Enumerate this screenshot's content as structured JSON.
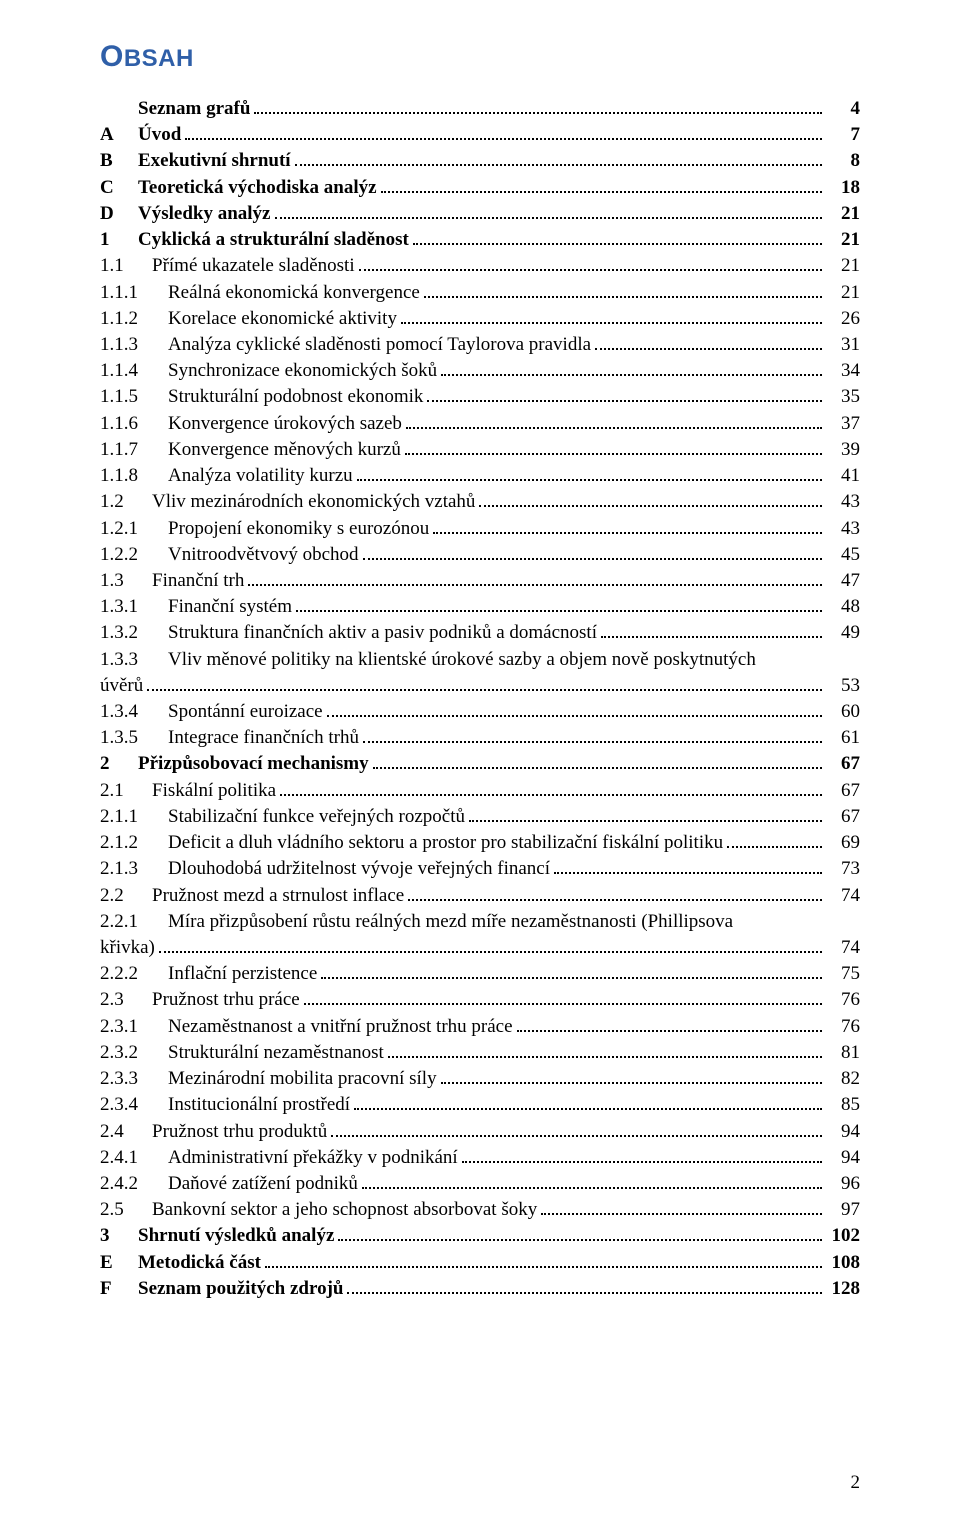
{
  "title_first": "O",
  "title_rest": "BSAH",
  "title_color": "#2f5fa8",
  "page_number": "2",
  "entries": [
    {
      "level": 0,
      "bold": true,
      "num": "",
      "label": "Seznam grafů",
      "page": "4"
    },
    {
      "level": 0,
      "bold": true,
      "num": "A",
      "label": "Úvod",
      "page": "7"
    },
    {
      "level": 0,
      "bold": true,
      "num": "B",
      "label": "Exekutivní shrnutí",
      "page": "8"
    },
    {
      "level": 0,
      "bold": true,
      "num": "C",
      "label": "Teoretická východiska analýz",
      "page": "18"
    },
    {
      "level": 0,
      "bold": true,
      "num": "D",
      "label": "Výsledky analýz",
      "page": "21"
    },
    {
      "level": 0,
      "bold": true,
      "num": "1",
      "label": "Cyklická a strukturální sladěnost",
      "page": "21"
    },
    {
      "level": 1,
      "bold": false,
      "num": "1.1",
      "label": "Přímé ukazatele sladěnosti",
      "page": "21"
    },
    {
      "level": 2,
      "bold": false,
      "num": "1.1.1",
      "label": "Reálná ekonomická konvergence",
      "page": "21"
    },
    {
      "level": 2,
      "bold": false,
      "num": "1.1.2",
      "label": "Korelace ekonomické aktivity",
      "page": "26"
    },
    {
      "level": 2,
      "bold": false,
      "num": "1.1.3",
      "label": "Analýza cyklické sladěnosti pomocí Taylorova pravidla",
      "page": "31"
    },
    {
      "level": 2,
      "bold": false,
      "num": "1.1.4",
      "label": "Synchronizace ekonomických šoků",
      "page": "34"
    },
    {
      "level": 2,
      "bold": false,
      "num": "1.1.5",
      "label": "Strukturální podobnost ekonomik",
      "page": "35"
    },
    {
      "level": 2,
      "bold": false,
      "num": "1.1.6",
      "label": "Konvergence úrokových sazeb",
      "page": "37"
    },
    {
      "level": 2,
      "bold": false,
      "num": "1.1.7",
      "label": "Konvergence měnových kurzů",
      "page": "39"
    },
    {
      "level": 2,
      "bold": false,
      "num": "1.1.8",
      "label": "Analýza volatility kurzu",
      "page": "41"
    },
    {
      "level": 1,
      "bold": false,
      "num": "1.2",
      "label": "Vliv mezinárodních ekonomických vztahů",
      "page": "43"
    },
    {
      "level": 2,
      "bold": false,
      "num": "1.2.1",
      "label": "Propojení ekonomiky s eurozónou",
      "page": "43"
    },
    {
      "level": 2,
      "bold": false,
      "num": "1.2.2",
      "label": "Vnitroodvětvový obchod",
      "page": "45"
    },
    {
      "level": 1,
      "bold": false,
      "num": "1.3",
      "label": "Finanční trh",
      "page": "47"
    },
    {
      "level": 2,
      "bold": false,
      "num": "1.3.1",
      "label": "Finanční systém",
      "page": "48"
    },
    {
      "level": 2,
      "bold": false,
      "num": "1.3.2",
      "label": "Struktura finančních aktiv a pasiv podniků a domácností",
      "page": "49"
    },
    {
      "level": 2,
      "bold": false,
      "num": "1.3.3",
      "label": "Vliv měnové politiky na klientské úrokové sazby a objem nově poskytnutých",
      "wrap_second": "úvěrů",
      "page": "53"
    },
    {
      "level": 2,
      "bold": false,
      "num": "1.3.4",
      "label": "Spontánní euroizace",
      "page": "60"
    },
    {
      "level": 2,
      "bold": false,
      "num": "1.3.5",
      "label": "Integrace finančních trhů",
      "page": "61"
    },
    {
      "level": 0,
      "bold": true,
      "num": "2",
      "label": "Přizpůsobovací mechanismy",
      "page": "67"
    },
    {
      "level": 1,
      "bold": false,
      "num": "2.1",
      "label": "Fiskální politika",
      "page": "67"
    },
    {
      "level": 2,
      "bold": false,
      "num": "2.1.1",
      "label": "Stabilizační funkce veřejných rozpočtů",
      "page": "67"
    },
    {
      "level": 2,
      "bold": false,
      "num": "2.1.2",
      "label": "Deficit a dluh vládního sektoru a prostor pro stabilizační fiskální politiku",
      "page": "69"
    },
    {
      "level": 2,
      "bold": false,
      "num": "2.1.3",
      "label": "Dlouhodobá udržitelnost vývoje veřejných financí",
      "page": "73"
    },
    {
      "level": 1,
      "bold": false,
      "num": "2.2",
      "label": "Pružnost mezd a strnulost inflace",
      "page": "74"
    },
    {
      "level": 2,
      "bold": false,
      "num": "2.2.1",
      "label": "Míra přizpůsobení růstu reálných mezd míře nezaměstnanosti (Phillipsova",
      "wrap_second": "křivka)",
      "page": "74"
    },
    {
      "level": 2,
      "bold": false,
      "num": "2.2.2",
      "label": "Inflační perzistence",
      "page": "75"
    },
    {
      "level": 1,
      "bold": false,
      "num": "2.3",
      "label": "Pružnost trhu práce",
      "page": "76"
    },
    {
      "level": 2,
      "bold": false,
      "num": "2.3.1",
      "label": "Nezaměstnanost a vnitřní pružnost trhu práce",
      "page": "76"
    },
    {
      "level": 2,
      "bold": false,
      "num": "2.3.2",
      "label": "Strukturální nezaměstnanost",
      "page": "81"
    },
    {
      "level": 2,
      "bold": false,
      "num": "2.3.3",
      "label": "Mezinárodní mobilita pracovní síly",
      "page": "82"
    },
    {
      "level": 2,
      "bold": false,
      "num": "2.3.4",
      "label": "Institucionální prostředí",
      "page": "85"
    },
    {
      "level": 1,
      "bold": false,
      "num": "2.4",
      "label": "Pružnost trhu produktů",
      "page": "94"
    },
    {
      "level": 2,
      "bold": false,
      "num": "2.4.1",
      "label": "Administrativní překážky v podnikání",
      "page": "94"
    },
    {
      "level": 2,
      "bold": false,
      "num": "2.4.2",
      "label": "Daňové zatížení podniků",
      "page": "96"
    },
    {
      "level": 1,
      "bold": false,
      "num": "2.5",
      "label": "Bankovní sektor a jeho schopnost absorbovat šoky",
      "page": "97"
    },
    {
      "level": 0,
      "bold": true,
      "num": "3",
      "label": "Shrnutí výsledků analýz",
      "page": "102"
    },
    {
      "level": 0,
      "bold": true,
      "num": "E",
      "label": "Metodická část",
      "page": "108"
    },
    {
      "level": 0,
      "bold": true,
      "num": "F",
      "label": "Seznam použitých zdrojů",
      "page": "128"
    }
  ]
}
